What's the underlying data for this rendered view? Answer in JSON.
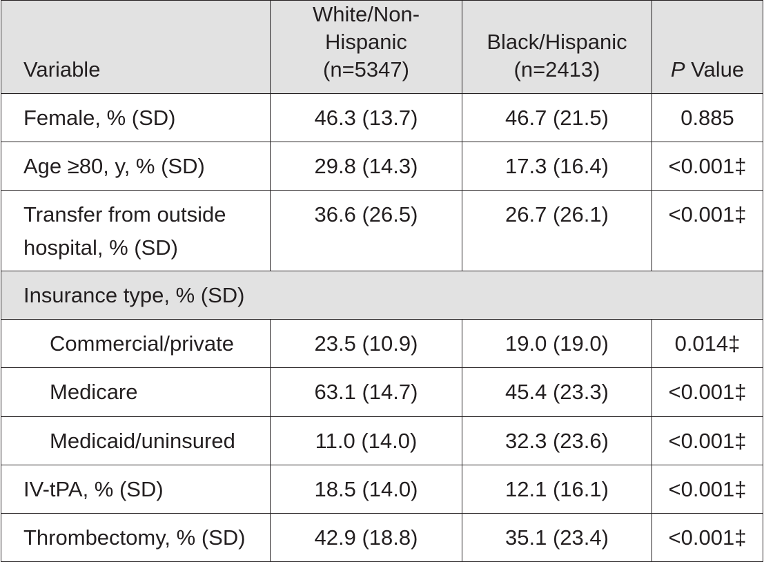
{
  "table": {
    "headers": {
      "variable": "Variable",
      "white_line1": "White/Non-Hispanic",
      "white_line2": "(n=5347)",
      "black_line1": "Black/Hispanic",
      "black_line2": "(n=2413)",
      "p_italic": "P",
      "p_rest": " Value"
    },
    "rows": [
      {
        "label": "Female, % (SD)",
        "white": "46.3 (13.7)",
        "black": "46.7 (21.5)",
        "p": "0.885"
      },
      {
        "label": "Age ≥80, y, % (SD)",
        "white": "29.8 (14.3)",
        "black": "17.3 (16.4)",
        "p": "<0.001‡"
      },
      {
        "label_line1": "Transfer from outside",
        "label_line2": "hospital, % (SD)",
        "white": "36.6 (26.5)",
        "black": "26.7 (26.1)",
        "p": "<0.001‡"
      },
      {
        "section": "Insurance type, % (SD)"
      },
      {
        "label": "Commercial/private",
        "white": "23.5 (10.9)",
        "black": "19.0 (19.0)",
        "p": "0.014‡"
      },
      {
        "label": "Medicare",
        "white": "63.1 (14.7)",
        "black": "45.4 (23.3)",
        "p": "<0.001‡"
      },
      {
        "label": "Medicaid/uninsured",
        "white": "11.0 (14.0)",
        "black": "32.3 (23.6)",
        "p": "<0.001‡"
      },
      {
        "label": "IV-tPA, % (SD)",
        "white": "18.5 (14.0)",
        "black": "12.1 (16.1)",
        "p": "<0.001‡"
      },
      {
        "label": "Thrombectomy, % (SD)",
        "white": "42.9 (18.8)",
        "black": "35.1 (23.4)",
        "p": "<0.001‡"
      }
    ]
  }
}
